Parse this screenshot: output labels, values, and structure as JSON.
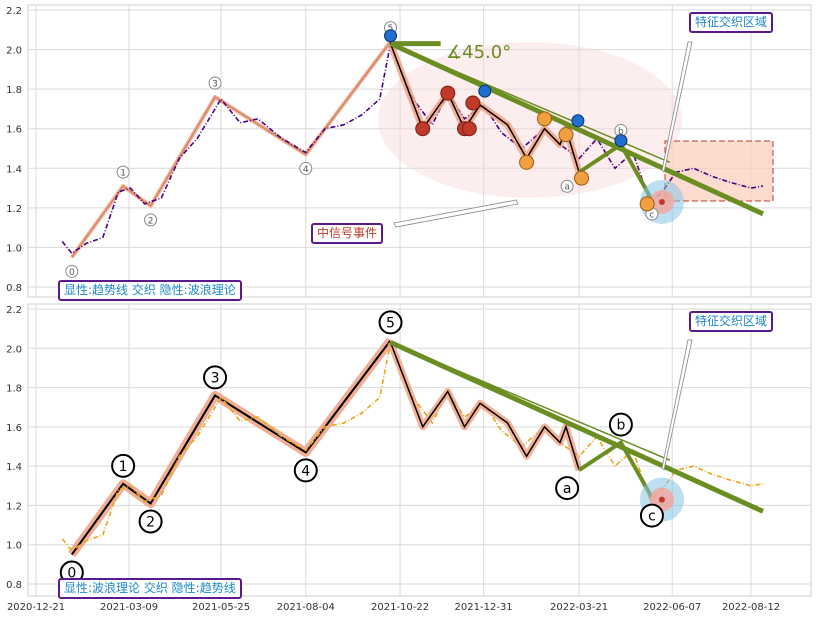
{
  "chart_data": [
    {
      "type": "line",
      "panel": "top",
      "x_dates": [
        "2020-12-21",
        "2021-03-09",
        "2021-05-25",
        "2021-08-04",
        "2021-10-22",
        "2021-12-31",
        "2022-03-21",
        "2022-06-07",
        "2022-08-12"
      ],
      "ylim": [
        0.78,
        2.22
      ],
      "yticks": [
        "0.8",
        "1.0",
        "1.2",
        "1.4",
        "1.6",
        "1.8",
        "2.0",
        "2.2"
      ],
      "grid": true,
      "series": [
        {
          "role": "price",
          "color": "#4b0082",
          "x": [
            "2021-01-12",
            "2021-01-20",
            "2021-02-01",
            "2021-02-15",
            "2021-02-28",
            "2021-03-10",
            "2021-03-22",
            "2021-04-05",
            "2021-04-20",
            "2021-05-05",
            "2021-05-25",
            "2021-06-10",
            "2021-06-25",
            "2021-07-15",
            "2021-08-04",
            "2021-08-20",
            "2021-09-05",
            "2021-09-20",
            "2021-10-05",
            "2021-10-14",
            "2021-10-22",
            "2021-11-02",
            "2021-11-18",
            "2021-12-01",
            "2021-12-15",
            "2021-12-31",
            "2022-01-15",
            "2022-02-01",
            "2022-02-20",
            "2022-03-05",
            "2022-03-21",
            "2022-04-05",
            "2022-04-20",
            "2022-05-05",
            "2022-05-20",
            "2022-06-01",
            "2022-06-10",
            "2022-06-25",
            "2022-07-10",
            "2022-07-25",
            "2022-08-12",
            "2022-08-22"
          ],
          "y": [
            1.03,
            0.97,
            1.02,
            1.05,
            1.28,
            1.3,
            1.22,
            1.25,
            1.45,
            1.55,
            1.75,
            1.63,
            1.65,
            1.55,
            1.48,
            1.6,
            1.62,
            1.67,
            1.75,
            2.03,
            1.9,
            1.75,
            1.62,
            1.78,
            1.65,
            1.72,
            1.58,
            1.5,
            1.6,
            1.52,
            1.45,
            1.55,
            1.4,
            1.48,
            1.22,
            1.3,
            1.38,
            1.4,
            1.36,
            1.33,
            1.3,
            1.31
          ]
        }
      ],
      "wave_points": [
        {
          "label": "0",
          "x": "2021-01-20",
          "y": 0.95
        },
        {
          "label": "1",
          "x": "2021-03-04",
          "y": 1.31
        },
        {
          "label": "2",
          "x": "2021-03-27",
          "y": 1.21
        },
        {
          "label": "3",
          "x": "2021-05-20",
          "y": 1.76
        },
        {
          "label": "4",
          "x": "2021-08-04",
          "y": 1.47
        },
        {
          "label": "5",
          "x": "2021-10-14",
          "y": 2.04
        },
        {
          "label": "a",
          "x": "2022-03-21",
          "y": 1.38
        },
        {
          "label": "b",
          "x": "2022-04-25",
          "y": 1.52
        },
        {
          "label": "c",
          "x": "2022-05-21",
          "y": 1.24
        }
      ],
      "trend_lines": [
        {
          "from": {
            "x": "2021-10-14",
            "y": 2.03
          },
          "to": {
            "x": "2022-08-22",
            "y": 1.17
          }
        },
        {
          "from": {
            "x": "2021-10-14",
            "y": 2.03
          },
          "to": {
            "x": "2022-06-05",
            "y": 1.43
          }
        },
        {
          "from": {
            "x": "2021-10-14",
            "y": 2.03
          },
          "to": {
            "x": "2021-11-25",
            "y": 2.03
          }
        }
      ],
      "angle_label": "∡45.0°",
      "annotations": [
        {
          "text": "显性:趋势线 交织 隐性:波浪理论",
          "position": "bottom-left"
        },
        {
          "text": "特征交织区域",
          "position": "top-right"
        },
        {
          "text": "中信号事件",
          "position": "bottom-center"
        }
      ]
    },
    {
      "type": "line",
      "panel": "bottom",
      "x_dates": [
        "2020-12-21",
        "2021-03-09",
        "2021-05-25",
        "2021-08-04",
        "2021-10-22",
        "2021-12-31",
        "2022-03-21",
        "2022-06-07",
        "2022-08-12"
      ],
      "ylim": [
        0.78,
        2.22
      ],
      "yticks": [
        "0.8",
        "1.0",
        "1.2",
        "1.4",
        "1.6",
        "1.8",
        "2.0",
        "2.2"
      ],
      "grid": true,
      "series": [
        {
          "role": "price",
          "color": "#e6a817",
          "x": [
            "2021-01-12",
            "2021-01-20",
            "2021-02-01",
            "2021-02-15",
            "2021-02-28",
            "2021-03-10",
            "2021-03-22",
            "2021-04-05",
            "2021-04-20",
            "2021-05-05",
            "2021-05-25",
            "2021-06-10",
            "2021-06-25",
            "2021-07-15",
            "2021-08-04",
            "2021-08-20",
            "2021-09-05",
            "2021-09-20",
            "2021-10-05",
            "2021-10-14",
            "2021-10-22",
            "2021-11-02",
            "2021-11-18",
            "2021-12-01",
            "2021-12-15",
            "2021-12-31",
            "2022-01-15",
            "2022-02-01",
            "2022-02-20",
            "2022-03-05",
            "2022-03-21",
            "2022-04-05",
            "2022-04-20",
            "2022-05-05",
            "2022-05-20",
            "2022-06-01",
            "2022-06-10",
            "2022-06-25",
            "2022-07-10",
            "2022-07-25",
            "2022-08-12",
            "2022-08-22"
          ],
          "y": [
            1.03,
            0.97,
            1.02,
            1.05,
            1.28,
            1.3,
            1.22,
            1.25,
            1.45,
            1.55,
            1.75,
            1.63,
            1.65,
            1.55,
            1.48,
            1.6,
            1.62,
            1.67,
            1.75,
            2.03,
            1.9,
            1.75,
            1.62,
            1.78,
            1.65,
            1.72,
            1.58,
            1.5,
            1.6,
            1.52,
            1.45,
            1.55,
            1.4,
            1.48,
            1.22,
            1.3,
            1.38,
            1.4,
            1.36,
            1.33,
            1.3,
            1.31
          ]
        }
      ],
      "wave_points": [
        {
          "label": "0",
          "x": "2021-01-20",
          "y": 0.95
        },
        {
          "label": "1",
          "x": "2021-03-04",
          "y": 1.31
        },
        {
          "label": "2",
          "x": "2021-03-27",
          "y": 1.21
        },
        {
          "label": "3",
          "x": "2021-05-20",
          "y": 1.76
        },
        {
          "label": "4",
          "x": "2021-08-04",
          "y": 1.47
        },
        {
          "label": "5",
          "x": "2021-10-14",
          "y": 2.04
        },
        {
          "label": "a",
          "x": "2022-03-21",
          "y": 1.38
        },
        {
          "label": "b",
          "x": "2022-04-25",
          "y": 1.52
        },
        {
          "label": "c",
          "x": "2022-05-21",
          "y": 1.24
        }
      ],
      "trend_lines": [
        {
          "from": {
            "x": "2021-10-14",
            "y": 2.03
          },
          "to": {
            "x": "2022-08-22",
            "y": 1.17
          }
        },
        {
          "from": {
            "x": "2021-10-14",
            "y": 2.03
          },
          "to": {
            "x": "2022-06-05",
            "y": 1.43
          }
        }
      ],
      "annotations": [
        {
          "text": "显性:波浪理论 交织 隐性:趋势线",
          "position": "bottom-left"
        },
        {
          "text": "特征交织区域",
          "position": "top-right"
        }
      ]
    }
  ],
  "colors": {
    "purple_price": "#4b0082",
    "gold_price": "#e6a817",
    "trend_green": "#6b8e23",
    "wave_salmon": "#f0a080",
    "box_border": "#5b1a8c",
    "box_text": "#1e88c8",
    "signal_text": "#c0392b"
  }
}
